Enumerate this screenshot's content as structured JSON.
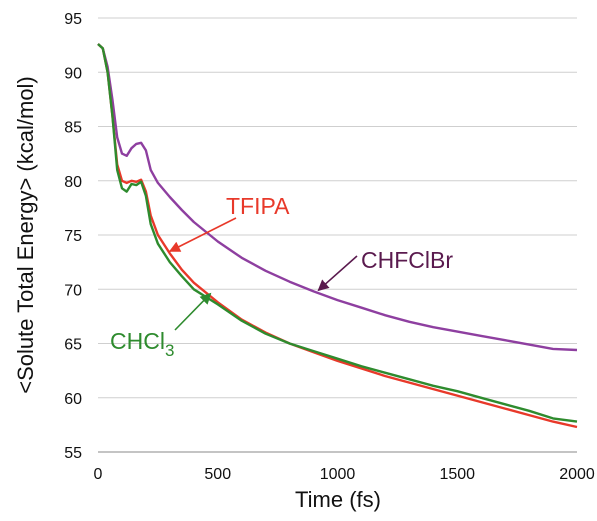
{
  "chart_data": {
    "type": "line",
    "xlabel": "Time (fs)",
    "ylabel": "<Solute Total Energy> (kcal/mol)",
    "xlim": [
      0,
      2000
    ],
    "ylim": [
      55,
      95
    ],
    "xticks": [
      "0",
      "500",
      "1000",
      "1500",
      "2000"
    ],
    "yticks": [
      "55",
      "60",
      "65",
      "70",
      "75",
      "80",
      "85",
      "90",
      "95"
    ],
    "grid": "horizontal",
    "series": [
      {
        "name": "CHFClBr",
        "color": "#8e3fa0",
        "x": [
          0,
          20,
          40,
          60,
          80,
          100,
          120,
          140,
          160,
          180,
          200,
          220,
          250,
          300,
          350,
          400,
          500,
          600,
          700,
          800,
          900,
          1000,
          1100,
          1200,
          1300,
          1400,
          1500,
          1600,
          1700,
          1800,
          1900,
          2000
        ],
        "y": [
          92.6,
          92.2,
          90.5,
          87.5,
          84.0,
          82.5,
          82.3,
          83.0,
          83.4,
          83.5,
          82.8,
          81.0,
          79.8,
          78.5,
          77.3,
          76.2,
          74.4,
          72.9,
          71.7,
          70.7,
          69.8,
          69.0,
          68.3,
          67.6,
          67.0,
          66.5,
          66.1,
          65.7,
          65.3,
          64.9,
          64.5,
          64.4
        ]
      },
      {
        "name": "TFIPA",
        "color": "#e8392a",
        "x": [
          0,
          20,
          40,
          60,
          80,
          100,
          120,
          140,
          160,
          180,
          200,
          220,
          250,
          300,
          350,
          400,
          500,
          600,
          700,
          800,
          900,
          1000,
          1100,
          1200,
          1300,
          1400,
          1500,
          1600,
          1700,
          1800,
          1900,
          2000
        ],
        "y": [
          92.6,
          92.2,
          90.0,
          86.0,
          81.5,
          80.0,
          79.8,
          80.0,
          79.9,
          80.1,
          79.0,
          76.8,
          75.0,
          73.3,
          71.8,
          70.6,
          68.8,
          67.2,
          66.0,
          65.0,
          64.2,
          63.4,
          62.7,
          62.0,
          61.4,
          60.8,
          60.2,
          59.6,
          59.0,
          58.4,
          57.8,
          57.3
        ]
      },
      {
        "name": "CHCl3",
        "color": "#2e8b2e",
        "x": [
          0,
          20,
          40,
          60,
          80,
          100,
          120,
          140,
          160,
          180,
          200,
          220,
          250,
          300,
          350,
          400,
          500,
          600,
          700,
          800,
          900,
          1000,
          1100,
          1200,
          1300,
          1400,
          1500,
          1600,
          1700,
          1800,
          1900,
          2000
        ],
        "y": [
          92.6,
          92.2,
          90.0,
          86.0,
          81.0,
          79.3,
          79.0,
          79.7,
          79.6,
          79.9,
          78.6,
          76.0,
          74.2,
          72.5,
          71.2,
          70.0,
          68.6,
          67.1,
          65.9,
          65.0,
          64.3,
          63.6,
          62.9,
          62.3,
          61.7,
          61.1,
          60.6,
          60.0,
          59.4,
          58.8,
          58.1,
          57.8
        ]
      }
    ],
    "annotations": [
      {
        "text": "TFIPA",
        "color": "#e8392a",
        "arrow_to": [
          300,
          73.5
        ]
      },
      {
        "text": "CHFClBr",
        "color": "#5a1a4e",
        "arrow_to": [
          920,
          69.9
        ]
      },
      {
        "text": "CHCl",
        "subscript": "3",
        "color": "#2e8b2e",
        "arrow_to": [
          470,
          69.6
        ]
      }
    ]
  }
}
